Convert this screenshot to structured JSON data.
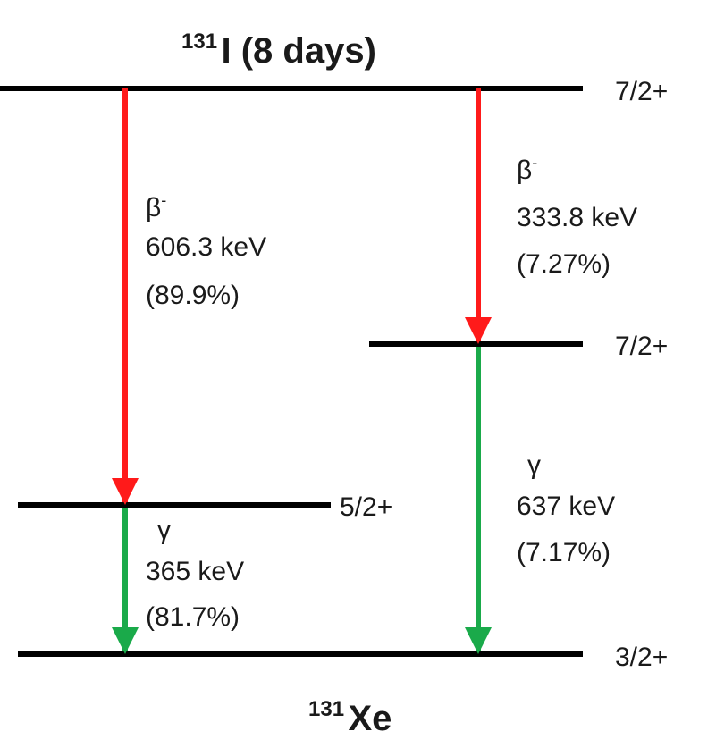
{
  "parent": {
    "mass_number": "131",
    "title_rest": "I (8 days)",
    "spin": "7/2+"
  },
  "daughter": {
    "mass_number": "131",
    "symbol": "Xe"
  },
  "levels": [
    {
      "id": "excited-637",
      "spin": "7/2+"
    },
    {
      "id": "excited-365",
      "spin": "5/2+"
    },
    {
      "id": "ground",
      "spin": "3/2+"
    }
  ],
  "transitions": [
    {
      "id": "beta-1",
      "kind": "beta",
      "symbol": "β",
      "superscript": "-",
      "energy": "606.3 keV",
      "intensity": "(89.9%)",
      "color": "#ff1a1a"
    },
    {
      "id": "beta-2",
      "kind": "beta",
      "symbol": "β",
      "superscript": "-",
      "energy": "333.8 keV",
      "intensity": "(7.27%)",
      "color": "#ff1a1a"
    },
    {
      "id": "gamma-1",
      "kind": "gamma",
      "symbol": "γ",
      "energy": "365 keV",
      "intensity": "(81.7%)",
      "color": "#1aaa4a"
    },
    {
      "id": "gamma-2",
      "kind": "gamma",
      "symbol": "γ",
      "energy": "637 keV",
      "intensity": "(7.17%)",
      "color": "#1aaa4a"
    }
  ],
  "colors": {
    "level_line": "#000000",
    "beta": "#ff1a1a",
    "gamma": "#1aaa4a"
  }
}
